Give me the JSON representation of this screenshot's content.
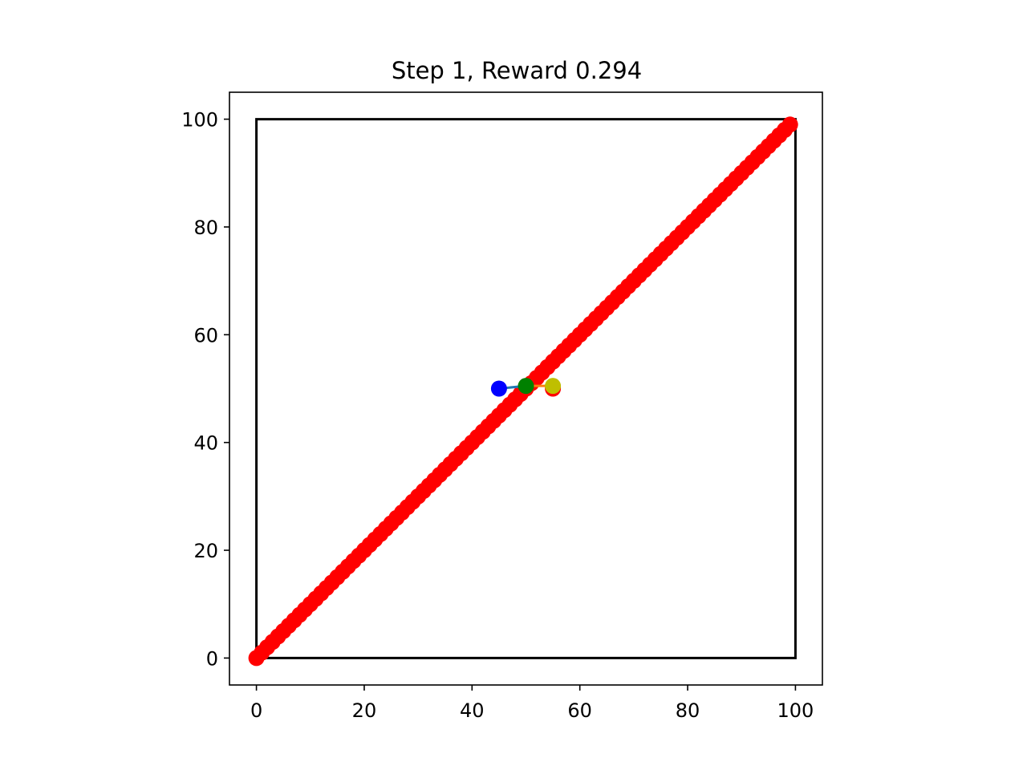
{
  "chart_data": {
    "type": "scatter",
    "title": "Step 1, Reward 0.294",
    "xlabel": "",
    "ylabel": "",
    "xlim": [
      -5,
      105
    ],
    "ylim": [
      -5,
      105
    ],
    "x_ticks": [
      0,
      20,
      40,
      60,
      80,
      100
    ],
    "y_ticks": [
      0,
      20,
      40,
      60,
      80,
      100
    ],
    "x_tick_labels": [
      "0",
      "20",
      "40",
      "60",
      "80",
      "100"
    ],
    "y_tick_labels": [
      "0",
      "20",
      "40",
      "60",
      "80",
      "100"
    ],
    "grid": false,
    "boundary": {
      "x": [
        0,
        100,
        100,
        0,
        0
      ],
      "y": [
        0,
        0,
        100,
        100,
        0
      ],
      "color": "#000000"
    },
    "series": [
      {
        "role": "trajectory",
        "color": "#ff0000",
        "x_start": 0,
        "x_end": 99,
        "x_step": 1,
        "slope": 1,
        "extra_points": [
          {
            "x": 55,
            "y": 50
          }
        ]
      },
      {
        "role": "segment",
        "color": "#1f77b4",
        "x": [
          45,
          50
        ],
        "y": [
          50,
          50.5
        ]
      },
      {
        "role": "segment",
        "color": "#ff7f0e",
        "x": [
          50,
          55
        ],
        "y": [
          50.5,
          50.5
        ]
      },
      {
        "role": "point",
        "color": "#0000ff",
        "x": [
          45
        ],
        "y": [
          50
        ]
      },
      {
        "role": "point",
        "color": "#008000",
        "x": [
          50
        ],
        "y": [
          50.5
        ]
      },
      {
        "role": "point",
        "color": "#bfbf00",
        "x": [
          55
        ],
        "y": [
          50.5
        ]
      }
    ]
  }
}
